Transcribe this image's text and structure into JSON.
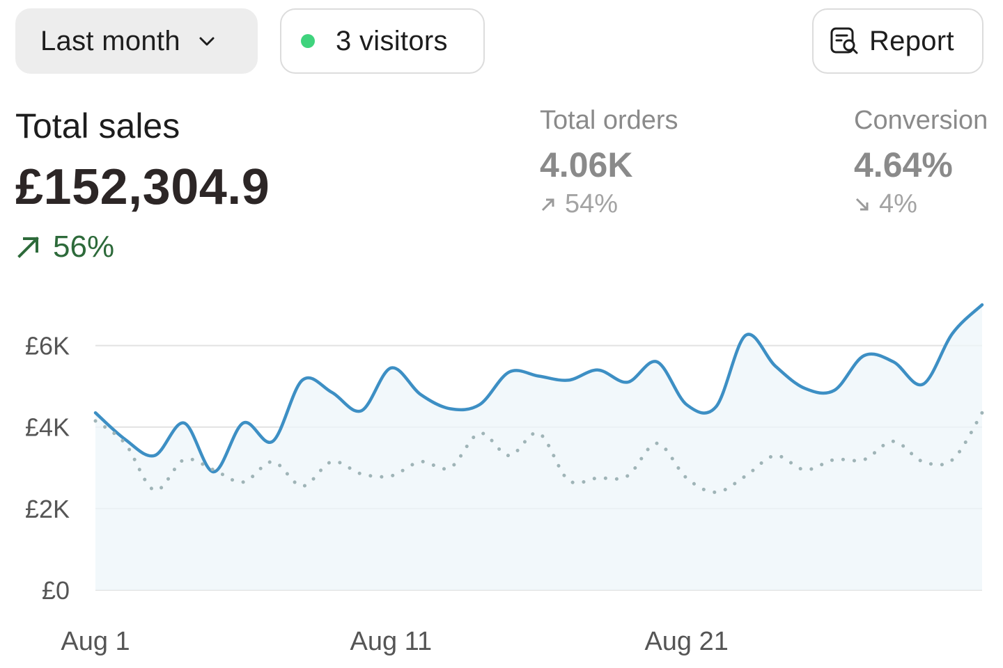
{
  "toolbar": {
    "period_label": "Last month",
    "visitors_label": "3 visitors",
    "report_label": "Report"
  },
  "metrics": {
    "primary": {
      "label": "Total sales",
      "value": "£152,304.9",
      "change": "56%"
    },
    "orders": {
      "label": "Total orders",
      "value": "4.06K",
      "change": "54%"
    },
    "conversion": {
      "label": "Conversion",
      "value": "4.64%",
      "change": "4%"
    }
  },
  "colors": {
    "accent_line": "#3d8fc4",
    "comparison_line": "#9fb4b7",
    "area_fill": "#eef5fa",
    "positive": "#2d6a3a",
    "visitor_dot": "#3fd37d"
  },
  "chart_data": {
    "type": "line",
    "ylim": [
      0,
      7000
    ],
    "yticks": [
      {
        "value": 0,
        "label": "£0"
      },
      {
        "value": 2000,
        "label": "£2K"
      },
      {
        "value": 4000,
        "label": "£4K"
      },
      {
        "value": 6000,
        "label": "£6K"
      }
    ],
    "xticks": [
      {
        "index": 0,
        "label": "Aug 1"
      },
      {
        "index": 10,
        "label": "Aug 11"
      },
      {
        "index": 20,
        "label": "Aug 21"
      }
    ],
    "x": [
      "Aug 1",
      "Aug 2",
      "Aug 3",
      "Aug 4",
      "Aug 5",
      "Aug 6",
      "Aug 7",
      "Aug 8",
      "Aug 9",
      "Aug 10",
      "Aug 11",
      "Aug 12",
      "Aug 13",
      "Aug 14",
      "Aug 15",
      "Aug 16",
      "Aug 17",
      "Aug 18",
      "Aug 19",
      "Aug 20",
      "Aug 21",
      "Aug 22",
      "Aug 23",
      "Aug 24",
      "Aug 25",
      "Aug 26",
      "Aug 27",
      "Aug 28",
      "Aug 29",
      "Aug 30",
      "Aug 31"
    ],
    "series": [
      {
        "style": "solid",
        "values": [
          4350,
          3700,
          3300,
          4100,
          2900,
          4100,
          3650,
          5150,
          4850,
          4400,
          5450,
          4800,
          4450,
          4550,
          5350,
          5250,
          5150,
          5400,
          5100,
          5600,
          4550,
          4500,
          6250,
          5500,
          4950,
          4900,
          5750,
          5600,
          5050,
          6300,
          7000
        ]
      },
      {
        "style": "dotted",
        "values": [
          4150,
          3600,
          2450,
          3200,
          2950,
          2650,
          3150,
          2550,
          3150,
          2850,
          2800,
          3150,
          3000,
          3850,
          3300,
          3850,
          2700,
          2750,
          2800,
          3600,
          2750,
          2400,
          2800,
          3300,
          2950,
          3200,
          3200,
          3650,
          3150,
          3200,
          4350
        ]
      }
    ]
  }
}
